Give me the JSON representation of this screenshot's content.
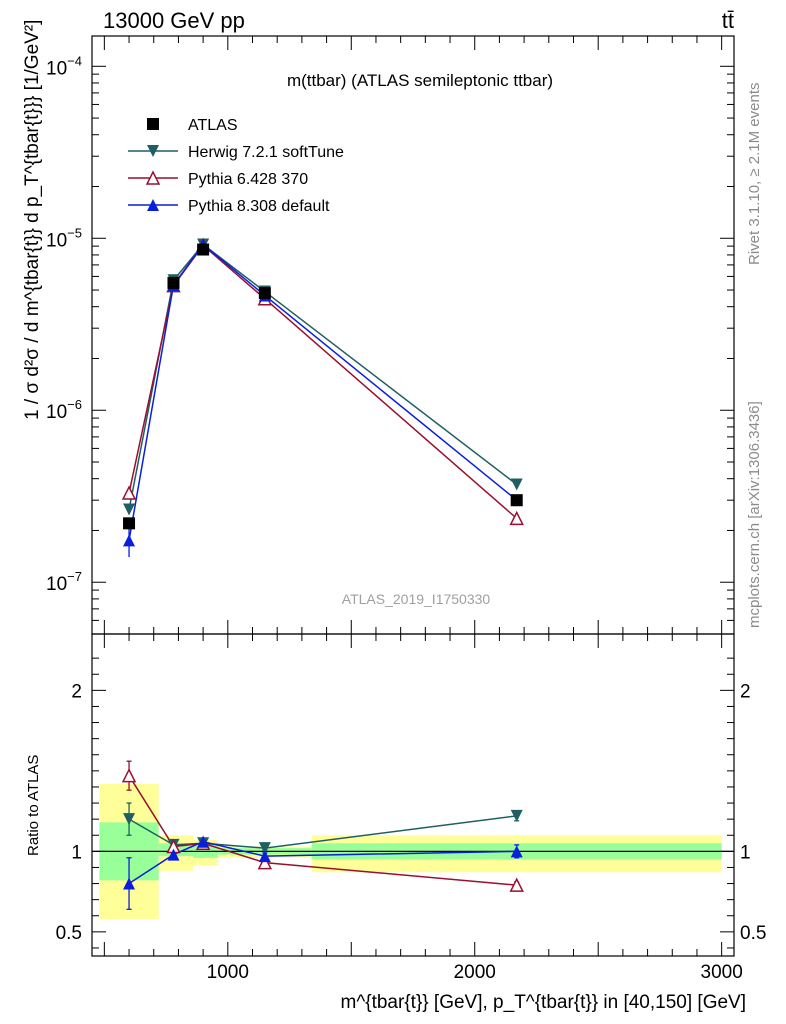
{
  "header": {
    "left": "13000 GeV pp",
    "right": "tt̄"
  },
  "side": {
    "rivet": "Rivet 3.1.10, ≥ 2.1M events",
    "mcplots": "mcplots.cern.ch [arXiv:1306.3436]"
  },
  "colors": {
    "atlas": "#000000",
    "herwig": "#1f5f63",
    "pythia6": "#9b0f2e",
    "pythia8": "#0a1fdc",
    "band_inner": "#99ff99",
    "band_outer": "#ffff99"
  },
  "chart_data": [
    {
      "type": "line",
      "title": "m(ttbar) (ATLAS semileptonic ttbar)",
      "watermark": "ATLAS_2019_I1750330",
      "ylabel": "1 / σ d²σ / d m^{tbar{t}} d p_T^{tbar{t}}} [1/GeV²]",
      "yscale": "log",
      "ylim": [
        5e-08,
        0.00015
      ],
      "xlim": [
        450,
        3050
      ],
      "y_ticks": [
        {
          "value": 1e-07,
          "base": "10",
          "exp": "−7"
        },
        {
          "value": 1e-06,
          "base": "10",
          "exp": "−6"
        },
        {
          "value": 1e-05,
          "base": "10",
          "exp": "−5"
        },
        {
          "value": 0.0001,
          "base": "10",
          "exp": "−4"
        }
      ],
      "legend": {
        "position": "top-left"
      },
      "bins": [
        [
          450,
          720
        ],
        [
          720,
          860
        ],
        [
          860,
          960
        ],
        [
          960,
          1340
        ],
        [
          1340,
          3000
        ]
      ],
      "x": [
        600,
        780,
        900,
        1150,
        2170
      ],
      "series": [
        {
          "name": "ATLAS",
          "marker": "square",
          "values": [
            2.2e-07,
            5.5e-06,
            8.6e-06,
            4.8e-06,
            3e-07
          ]
        },
        {
          "name": "Herwig 7.2.1 softTune",
          "marker": "triangle-down",
          "values": [
            2.65e-07,
            5.7e-06,
            9.2e-06,
            4.9e-06,
            3.7e-07
          ]
        },
        {
          "name": "Pythia 6.428 370",
          "marker": "triangle-up-open",
          "values": [
            3.3e-07,
            5.3e-06,
            9.1e-06,
            4.45e-06,
            2.35e-07
          ]
        },
        {
          "name": "Pythia 8.308 default",
          "marker": "triangle-up",
          "values": [
            1.75e-07,
            5.35e-06,
            9.2e-06,
            4.65e-06,
            3e-07
          ],
          "err_low": [
            1.4e-07,
            5.2e-06,
            9e-06,
            4.55e-06,
            2.9e-07
          ],
          "err_high": [
            2.1e-07,
            5.5e-06,
            9.4e-06,
            4.75e-06,
            3.1e-07
          ]
        }
      ]
    },
    {
      "type": "line",
      "ylabel": "Ratio to ATLAS",
      "xlabel": "m^{tbar{t}} [GeV], p_T^{tbar{t}} in [40,150] [GeV]",
      "ylim": [
        0.35,
        2.35
      ],
      "xlim": [
        450,
        3050
      ],
      "x_ticks": [
        1000,
        2000,
        3000
      ],
      "y_ticks": [
        0.5,
        1,
        2
      ],
      "reference": 1,
      "bins": [
        [
          450,
          720
        ],
        [
          720,
          860
        ],
        [
          860,
          960
        ],
        [
          960,
          1340
        ],
        [
          1340,
          3000
        ]
      ],
      "band_inner": [
        [
          0.82,
          1.18
        ],
        [
          0.97,
          1.05
        ],
        [
          0.96,
          1.05
        ],
        [
          0.98,
          1.02
        ],
        [
          0.95,
          1.05
        ]
      ],
      "band_outer": [
        [
          0.58,
          1.42
        ],
        [
          0.88,
          1.1
        ],
        [
          0.91,
          1.07
        ],
        [
          0.96,
          1.03
        ],
        [
          0.87,
          1.1
        ]
      ],
      "x": [
        600,
        780,
        900,
        1150,
        2170
      ],
      "series": [
        {
          "name": "Herwig 7.2.1 softTune",
          "values": [
            1.2,
            1.04,
            1.05,
            1.02,
            1.22
          ],
          "err_low": [
            1.1,
            1.01,
            1.03,
            1.01,
            1.19
          ],
          "err_high": [
            1.3,
            1.07,
            1.07,
            1.03,
            1.25
          ]
        },
        {
          "name": "Pythia 6.428 370",
          "values": [
            1.47,
            1.03,
            1.05,
            0.93,
            0.79
          ],
          "err_low": [
            1.38,
            1.0,
            1.03,
            0.92,
            0.77
          ],
          "err_high": [
            1.56,
            1.06,
            1.07,
            0.94,
            0.81
          ]
        },
        {
          "name": "Pythia 8.308 default",
          "values": [
            0.8,
            0.98,
            1.06,
            0.97,
            1.0
          ],
          "err_low": [
            0.64,
            0.95,
            1.04,
            0.95,
            0.96
          ],
          "err_high": [
            0.96,
            1.01,
            1.08,
            0.99,
            1.04
          ]
        }
      ]
    }
  ]
}
